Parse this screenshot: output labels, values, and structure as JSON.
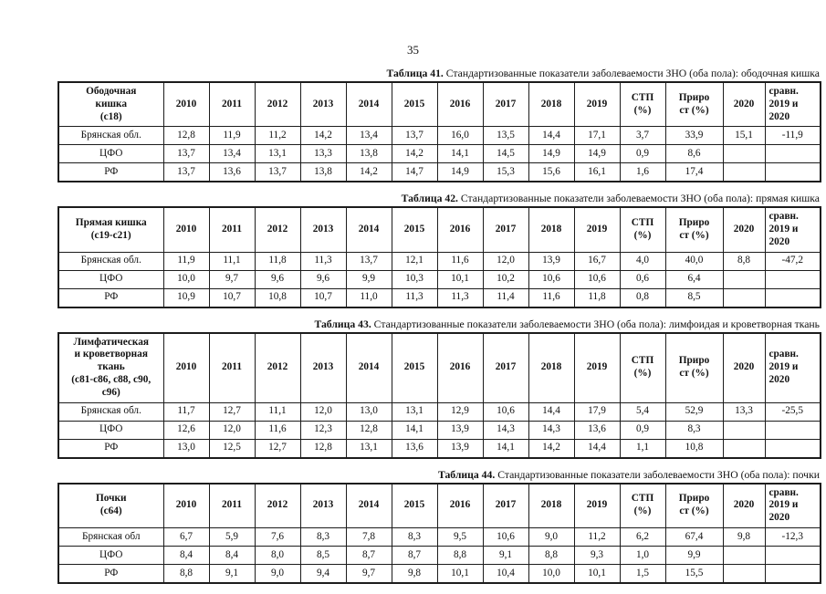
{
  "page": {
    "number": "35"
  },
  "colors": {
    "ink": "#1c1c1c",
    "paper": "#ffffff"
  },
  "tables": [
    {
      "title_bold": "Таблица 41.",
      "title_rest": " Стандартизованные показатели заболеваемости ЗНО (оба пола): ободочная кишка",
      "header": [
        "Ободочная\nкишка\n(с18)",
        "2010",
        "2011",
        "2012",
        "2013",
        "2014",
        "2015",
        "2016",
        "2017",
        "2018",
        "2019",
        "СТП\n(%)",
        "Приро\nст (%)",
        "2020",
        "сравн.\n2019 и\n2020"
      ],
      "rows": [
        [
          "Брянская обл.",
          "12,8",
          "11,9",
          "11,2",
          "14,2",
          "13,4",
          "13,7",
          "16,0",
          "13,5",
          "14,4",
          "17,1",
          "3,7",
          "33,9",
          "15,1",
          "-11,9"
        ],
        [
          "ЦФО",
          "13,7",
          "13,4",
          "13,1",
          "13,3",
          "13,8",
          "14,2",
          "14,1",
          "14,5",
          "14,9",
          "14,9",
          "0,9",
          "8,6",
          "",
          ""
        ],
        [
          "РФ",
          "13,7",
          "13,6",
          "13,7",
          "13,8",
          "14,2",
          "14,7",
          "14,9",
          "15,3",
          "15,6",
          "16,1",
          "1,6",
          "17,4",
          "",
          ""
        ]
      ]
    },
    {
      "title_bold": "Таблица 42.",
      "title_rest": " Стандартизованные показатели заболеваемости ЗНО (оба пола): прямая кишка",
      "header": [
        "Прямая кишка\n(с19-с21)",
        "2010",
        "2011",
        "2012",
        "2013",
        "2014",
        "2015",
        "2016",
        "2017",
        "2018",
        "2019",
        "СТП\n(%)",
        "Приро\nст (%)",
        "2020",
        "сравн.\n2019 и\n2020"
      ],
      "rows": [
        [
          "Брянская обл.",
          "11,9",
          "11,1",
          "11,8",
          "11,3",
          "13,7",
          "12,1",
          "11,6",
          "12,0",
          "13,9",
          "16,7",
          "4,0",
          "40,0",
          "8,8",
          "-47,2"
        ],
        [
          "ЦФО",
          "10,0",
          "9,7",
          "9,6",
          "9,6",
          "9,9",
          "10,3",
          "10,1",
          "10,2",
          "10,6",
          "10,6",
          "0,6",
          "6,4",
          "",
          ""
        ],
        [
          "РФ",
          "10,9",
          "10,7",
          "10,8",
          "10,7",
          "11,0",
          "11,3",
          "11,3",
          "11,4",
          "11,6",
          "11,8",
          "0,8",
          "8,5",
          "",
          ""
        ]
      ]
    },
    {
      "title_bold": "Таблица 43.",
      "title_rest": " Стандартизованные показатели заболеваемости ЗНО (оба пола): лимфоидая и кроветворная ткань",
      "header": [
        "Лимфатическая\nи кроветворная\nткань\n(с81-с86, с88, с90,\nс96)",
        "2010",
        "2011",
        "2012",
        "2013",
        "2014",
        "2015",
        "2016",
        "2017",
        "2018",
        "2019",
        "СТП\n(%)",
        "Приро\nст (%)",
        "2020",
        "сравн.\n2019 и\n2020"
      ],
      "rows": [
        [
          "Брянская обл.",
          "11,7",
          "12,7",
          "11,1",
          "12,0",
          "13,0",
          "13,1",
          "12,9",
          "10,6",
          "14,4",
          "17,9",
          "5,4",
          "52,9",
          "13,3",
          "-25,5"
        ],
        [
          "ЦФО",
          "12,6",
          "12,0",
          "11,6",
          "12,3",
          "12,8",
          "14,1",
          "13,9",
          "14,3",
          "14,3",
          "13,6",
          "0,9",
          "8,3",
          "",
          ""
        ],
        [
          "РФ",
          "13,0",
          "12,5",
          "12,7",
          "12,8",
          "13,1",
          "13,6",
          "13,9",
          "14,1",
          "14,2",
          "14,4",
          "1,1",
          "10,8",
          "",
          ""
        ]
      ]
    },
    {
      "title_bold": "Таблица 44.",
      "title_rest": " Стандартизованные показатели заболеваемости ЗНО (оба пола): почки",
      "header": [
        "Почки\n(с64)",
        "2010",
        "2011",
        "2012",
        "2013",
        "2014",
        "2015",
        "2016",
        "2017",
        "2018",
        "2019",
        "СТП\n(%)",
        "Приро\nст (%)",
        "2020",
        "сравн.\n2019 и\n2020"
      ],
      "rows": [
        [
          "Брянская обл",
          "6,7",
          "5,9",
          "7,6",
          "8,3",
          "7,8",
          "8,3",
          "9,5",
          "10,6",
          "9,0",
          "11,2",
          "6,2",
          "67,4",
          "9,8",
          "-12,3"
        ],
        [
          "ЦФО",
          "8,4",
          "8,4",
          "8,0",
          "8,5",
          "8,7",
          "8,7",
          "8,8",
          "9,1",
          "8,8",
          "9,3",
          "1,0",
          "9,9",
          "",
          ""
        ],
        [
          "РФ",
          "8,8",
          "9,1",
          "9,0",
          "9,4",
          "9,7",
          "9,8",
          "10,1",
          "10,4",
          "10,0",
          "10,1",
          "1,5",
          "15,5",
          "",
          ""
        ]
      ]
    }
  ]
}
